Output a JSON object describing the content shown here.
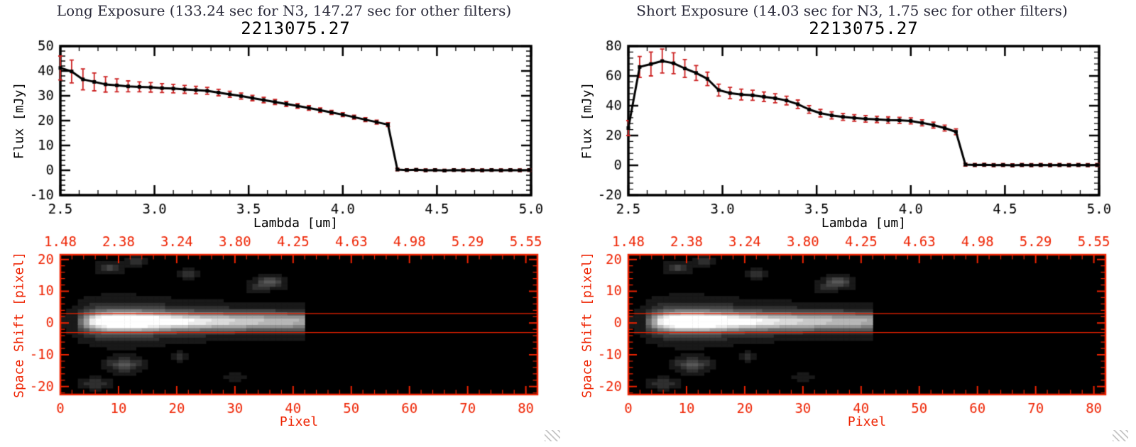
{
  "colors": {
    "background": "#ffffff",
    "spectrum_line": "#000000",
    "error_bar": "#cc2222",
    "image_axis": "#ee2200",
    "header_text": "#2a2a3a"
  },
  "panels": [
    {
      "header": "Long Exposure (133.24 sec for N3, 147.27 sec for other filters)"
    },
    {
      "header": "Short Exposure (14.03 sec for N3, 1.75 sec for other filters)"
    }
  ],
  "chart_data": [
    {
      "type": "line",
      "panel": "long-exposure",
      "title": "2213075.27",
      "xlabel": "Lambda [um]",
      "ylabel": "Flux [mJy]",
      "xlim": [
        2.5,
        5.0
      ],
      "ylim": [
        -10,
        50
      ],
      "xticks": [
        2.5,
        3.0,
        3.5,
        4.0,
        4.5,
        5.0
      ],
      "yticks": [
        -10,
        0,
        10,
        20,
        30,
        40,
        50
      ],
      "x_minor": 0.1,
      "y_minor": 2,
      "x_decimals": 1,
      "y_decimals": 0,
      "marker": "square",
      "line_color": "#000000",
      "error_color": "#cc2222",
      "x": [
        2.5,
        2.56,
        2.62,
        2.68,
        2.74,
        2.8,
        2.86,
        2.92,
        2.98,
        3.04,
        3.1,
        3.16,
        3.22,
        3.28,
        3.34,
        3.4,
        3.46,
        3.52,
        3.58,
        3.64,
        3.7,
        3.76,
        3.82,
        3.88,
        3.94,
        4.0,
        4.06,
        4.12,
        4.18,
        4.24,
        4.29,
        4.34,
        4.39,
        4.44,
        4.49,
        4.54,
        4.59,
        4.64,
        4.69,
        4.74,
        4.79,
        4.84,
        4.89,
        4.94,
        4.99
      ],
      "y": [
        41.2,
        39.8,
        36.6,
        35.6,
        34.6,
        34.2,
        33.8,
        33.6,
        33.4,
        33.1,
        32.9,
        32.6,
        32.3,
        32.0,
        31.3,
        30.6,
        29.9,
        29.1,
        28.3,
        27.5,
        26.7,
        25.9,
        25.1,
        24.2,
        23.3,
        22.4,
        21.4,
        20.4,
        19.4,
        18.4,
        0.3,
        0.1,
        0.2,
        0.0,
        0.1,
        -0.1,
        0.1,
        0.0,
        0.1,
        0.0,
        0.1,
        0.0,
        0.1,
        0.0,
        0.1
      ],
      "yerr": [
        4.8,
        4.6,
        4.2,
        3.6,
        3.1,
        2.6,
        2.2,
        2.0,
        1.9,
        1.8,
        1.7,
        1.6,
        1.5,
        1.4,
        1.3,
        1.2,
        1.2,
        1.1,
        1.1,
        1.0,
        1.0,
        0.9,
        0.9,
        0.9,
        0.8,
        0.8,
        0.8,
        0.8,
        0.8,
        0.8,
        0.5,
        0.5,
        0.5,
        0.5,
        0.5,
        0.5,
        0.5,
        0.5,
        0.5,
        0.5,
        0.5,
        0.5,
        0.5,
        0.5,
        0.5
      ]
    },
    {
      "type": "heatmap",
      "panel": "long-exposure",
      "xlabel": "Pixel",
      "ylabel": "Space Shift [pixel]",
      "xlim": [
        0,
        82
      ],
      "ylim": [
        -22.5,
        21.5
      ],
      "xticks": [
        0,
        10,
        20,
        30,
        40,
        50,
        60,
        70,
        80
      ],
      "yticks": [
        -20,
        -10,
        0,
        10,
        20
      ],
      "x_minor": 2,
      "y_minor": 2,
      "top_axis_labels": [
        "1.48",
        "2.38",
        "3.24",
        "3.80",
        "4.25",
        "4.63",
        "4.98",
        "5.29",
        "5.55"
      ],
      "top_axis_positions": [
        0,
        10,
        20,
        30,
        40,
        50,
        60,
        70,
        80
      ],
      "aperture_lines": [
        3,
        -3
      ],
      "axis_color": "#ee2200",
      "colormap": "grayscale",
      "render": {
        "y_center": 0.6,
        "sigma": 1.8,
        "halo_amp": 0.26,
        "halo_sigma": 3.6,
        "profile": [
          [
            2.5,
            0
          ],
          [
            4,
            0.35
          ],
          [
            6,
            0.75
          ],
          [
            8,
            0.95
          ],
          [
            10,
            1
          ],
          [
            14,
            1
          ],
          [
            17,
            0.9
          ],
          [
            20,
            0.82
          ],
          [
            24,
            0.74
          ],
          [
            28,
            0.68
          ],
          [
            32,
            0.63
          ],
          [
            36,
            0.58
          ],
          [
            40,
            0.55
          ],
          [
            41.5,
            0.52
          ],
          [
            42.3,
            0
          ]
        ],
        "blobs": [
          [
            10,
            0.5,
            6,
            4.5,
            0.15
          ],
          [
            8.5,
            17.5,
            1.6,
            1.3,
            0.22
          ],
          [
            13,
            19.5,
            1.2,
            1.0,
            0.15
          ],
          [
            22,
            15.5,
            1.3,
            1.1,
            0.18
          ],
          [
            36,
            13,
            1.7,
            1.4,
            0.3
          ],
          [
            33.5,
            11,
            1.0,
            0.9,
            0.15
          ],
          [
            11,
            -13,
            2.0,
            1.6,
            0.3
          ],
          [
            20.5,
            -10.5,
            1.1,
            0.9,
            0.16
          ],
          [
            6,
            -19,
            1.6,
            1.2,
            0.2
          ],
          [
            30,
            -17,
            1.0,
            0.8,
            0.12
          ]
        ]
      }
    },
    {
      "type": "line",
      "panel": "short-exposure",
      "title": "2213075.27",
      "xlabel": "Lambda [um]",
      "ylabel": "Flux [mJy]",
      "xlim": [
        2.5,
        5.0
      ],
      "ylim": [
        -20,
        80
      ],
      "xticks": [
        2.5,
        3.0,
        3.5,
        4.0,
        4.5,
        5.0
      ],
      "yticks": [
        -20,
        0,
        20,
        40,
        60,
        80
      ],
      "x_minor": 0.1,
      "y_minor": 4,
      "x_decimals": 1,
      "y_decimals": 0,
      "marker": "square",
      "line_color": "#000000",
      "error_color": "#cc2222",
      "x": [
        2.5,
        2.56,
        2.62,
        2.68,
        2.74,
        2.8,
        2.86,
        2.92,
        2.98,
        3.04,
        3.1,
        3.16,
        3.22,
        3.28,
        3.34,
        3.4,
        3.46,
        3.52,
        3.58,
        3.64,
        3.7,
        3.76,
        3.82,
        3.88,
        3.94,
        4.0,
        4.06,
        4.12,
        4.18,
        4.24,
        4.29,
        4.34,
        4.39,
        4.44,
        4.49,
        4.54,
        4.59,
        4.64,
        4.69,
        4.74,
        4.79,
        4.84,
        4.89,
        4.94,
        4.99
      ],
      "y": [
        25.0,
        66.0,
        68.0,
        70.0,
        68.5,
        65.0,
        62.0,
        58.0,
        50.5,
        48.5,
        47.5,
        47.0,
        46.0,
        45.0,
        43.5,
        41.0,
        37.5,
        35.0,
        33.5,
        32.5,
        31.8,
        31.2,
        30.8,
        30.4,
        30.2,
        29.8,
        28.5,
        27.0,
        25.0,
        22.5,
        0.5,
        0.2,
        0.3,
        0.1,
        0.2,
        0.0,
        0.2,
        0.1,
        0.2,
        0.1,
        0.2,
        0.1,
        0.2,
        0.1,
        0.2
      ],
      "yerr": [
        5.0,
        7.0,
        8.0,
        8.0,
        7.0,
        6.0,
        5.0,
        4.5,
        4.0,
        3.8,
        3.6,
        3.4,
        3.2,
        3.0,
        2.9,
        2.8,
        2.6,
        2.5,
        2.4,
        2.3,
        2.2,
        2.2,
        2.1,
        2.1,
        2.0,
        2.0,
        2.0,
        2.0,
        2.0,
        2.0,
        1.0,
        1.0,
        1.0,
        1.0,
        1.0,
        1.0,
        1.0,
        1.0,
        1.0,
        1.0,
        1.0,
        1.0,
        1.0,
        1.0,
        1.0
      ]
    },
    {
      "type": "heatmap",
      "panel": "short-exposure",
      "xlabel": "Pixel",
      "ylabel": "Space Shift [pixel]",
      "xlim": [
        0,
        82
      ],
      "ylim": [
        -22.5,
        21.5
      ],
      "xticks": [
        0,
        10,
        20,
        30,
        40,
        50,
        60,
        70,
        80
      ],
      "yticks": [
        -20,
        -10,
        0,
        10,
        20
      ],
      "x_minor": 2,
      "y_minor": 2,
      "top_axis_labels": [
        "1.48",
        "2.38",
        "3.24",
        "3.80",
        "4.25",
        "4.63",
        "4.98",
        "5.29",
        "5.55"
      ],
      "top_axis_positions": [
        0,
        10,
        20,
        30,
        40,
        50,
        60,
        70,
        80
      ],
      "aperture_lines": [
        3,
        -3
      ],
      "axis_color": "#ee2200",
      "colormap": "grayscale",
      "render": {
        "y_center": 0.6,
        "sigma": 1.8,
        "halo_amp": 0.26,
        "halo_sigma": 3.6,
        "profile": [
          [
            2.5,
            0
          ],
          [
            4,
            0.35
          ],
          [
            6,
            0.75
          ],
          [
            8,
            0.95
          ],
          [
            10,
            1
          ],
          [
            14,
            1
          ],
          [
            17,
            0.9
          ],
          [
            20,
            0.82
          ],
          [
            24,
            0.74
          ],
          [
            28,
            0.68
          ],
          [
            32,
            0.63
          ],
          [
            36,
            0.58
          ],
          [
            40,
            0.55
          ],
          [
            41.5,
            0.52
          ],
          [
            42.3,
            0
          ]
        ],
        "blobs": [
          [
            10,
            0.5,
            6,
            4.5,
            0.15
          ],
          [
            8.5,
            17.5,
            1.6,
            1.3,
            0.22
          ],
          [
            13,
            19.5,
            1.2,
            1.0,
            0.15
          ],
          [
            22,
            15.5,
            1.3,
            1.1,
            0.18
          ],
          [
            36,
            13,
            1.7,
            1.4,
            0.3
          ],
          [
            33.5,
            11,
            1.0,
            0.9,
            0.15
          ],
          [
            11,
            -13,
            2.0,
            1.6,
            0.3
          ],
          [
            20.5,
            -10.5,
            1.1,
            0.9,
            0.16
          ],
          [
            6,
            -19,
            1.6,
            1.2,
            0.2
          ],
          [
            30,
            -17,
            1.0,
            0.8,
            0.12
          ]
        ]
      }
    }
  ]
}
